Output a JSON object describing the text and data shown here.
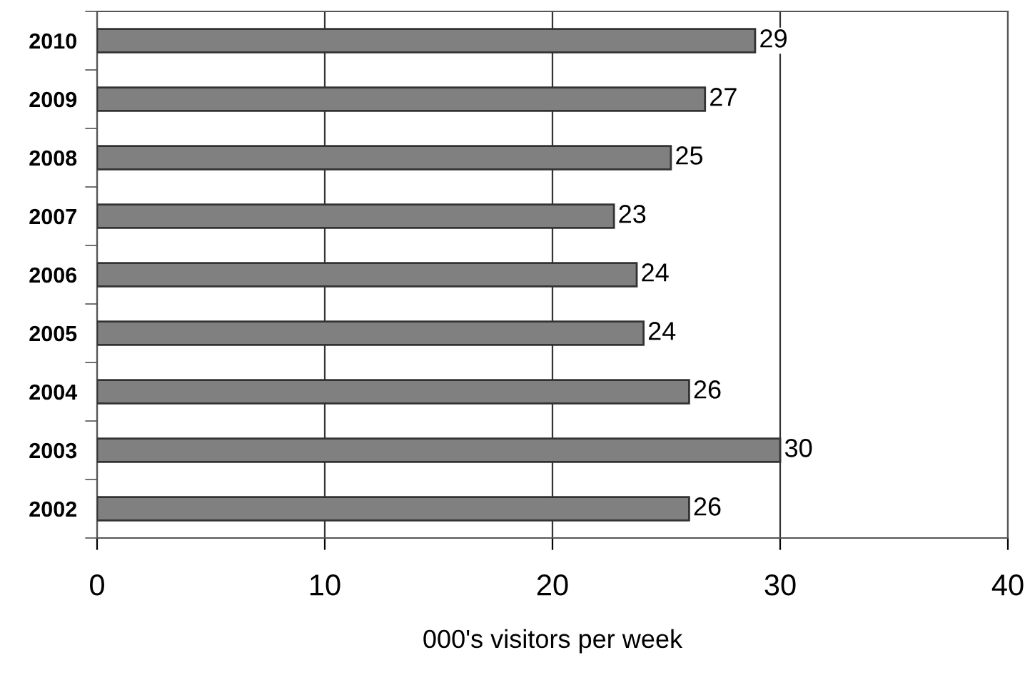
{
  "chart_data": {
    "type": "bar",
    "orientation": "horizontal",
    "categories": [
      "2010",
      "2009",
      "2008",
      "2007",
      "2006",
      "2005",
      "2004",
      "2003",
      "2002"
    ],
    "values": [
      28.9,
      26.7,
      25.2,
      22.7,
      23.7,
      24.0,
      26.0,
      30.0,
      26.0
    ],
    "value_labels": [
      "29",
      "27",
      "25",
      "23",
      "24",
      "24",
      "26",
      "30",
      "26"
    ],
    "color": "#808080",
    "xlabel": "000's visitors per week",
    "xlim": [
      0,
      40
    ],
    "xticks": [
      0,
      10,
      20,
      30,
      40
    ],
    "grid": "x"
  }
}
